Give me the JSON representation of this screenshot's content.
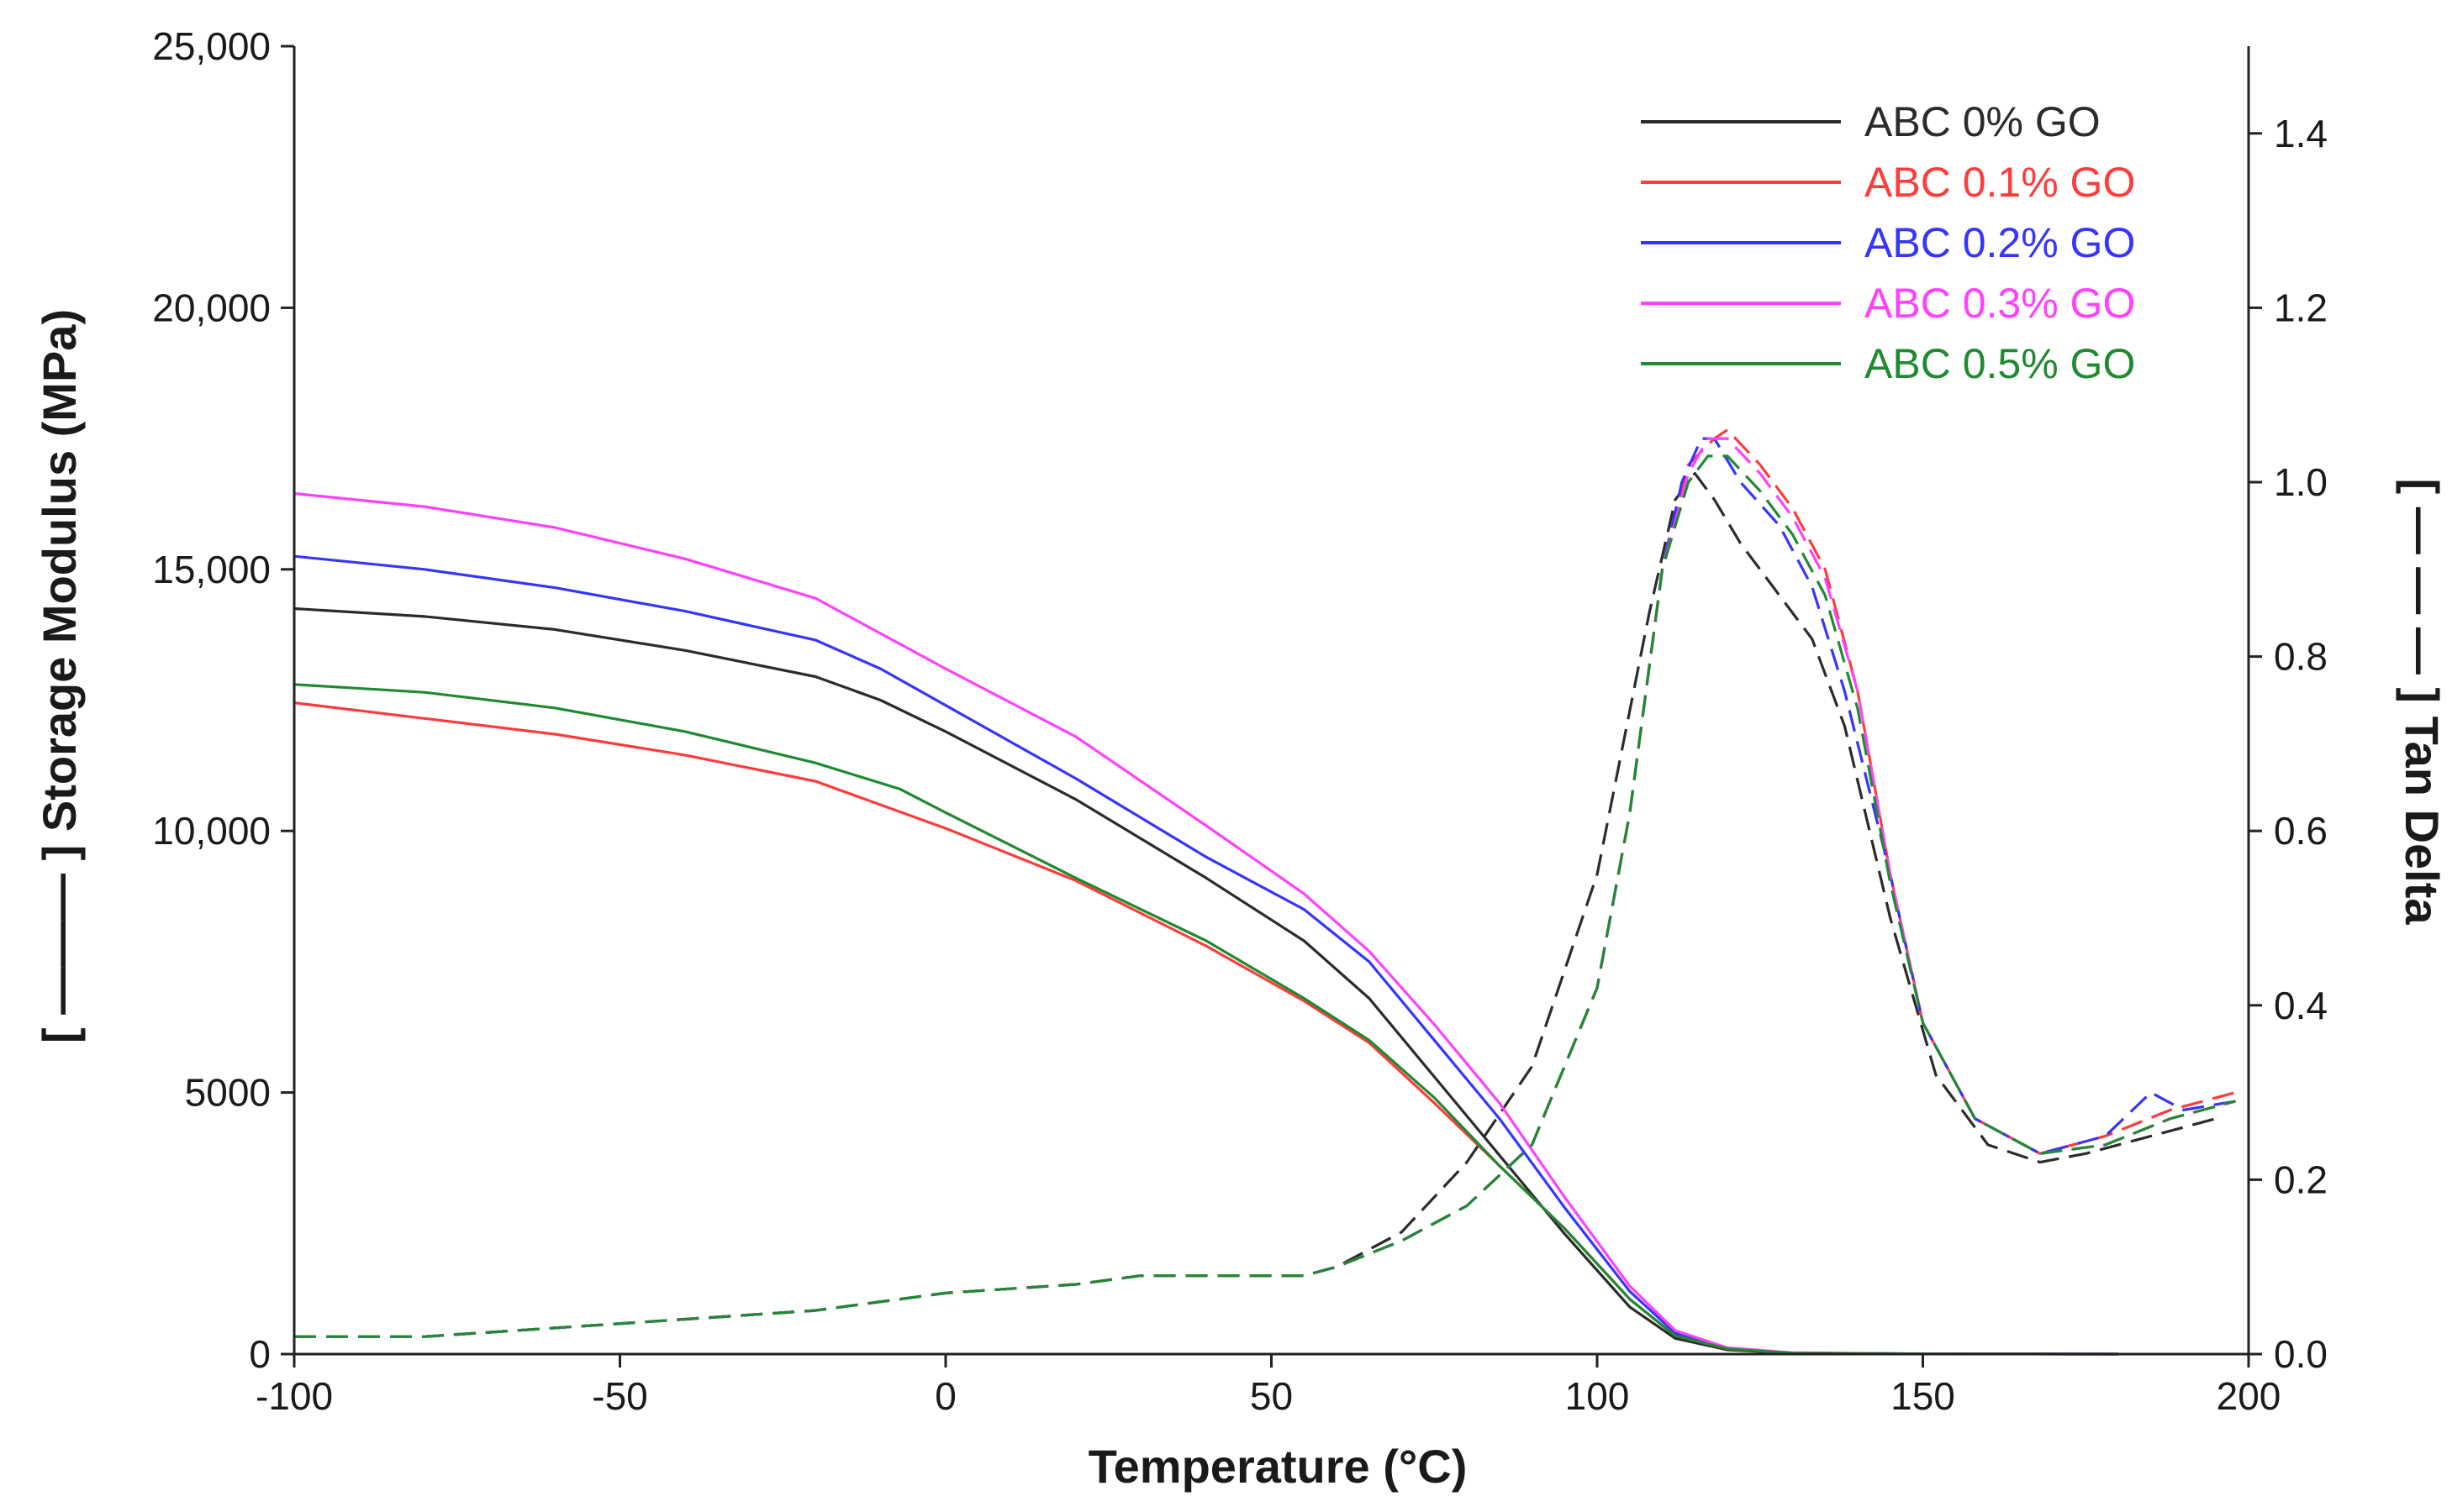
{
  "chart_data": {
    "type": "line",
    "xlabel": "Temperature (°C)",
    "ylabel": "[ ——— ] Storage Modulus (MPa)",
    "y2label": "[ — — — ] Tan Delta",
    "xlim": [
      -100,
      200
    ],
    "ylim": [
      0,
      25000
    ],
    "y2lim": [
      0,
      1.5
    ],
    "xticks": [
      -100,
      -50,
      0,
      50,
      100,
      150,
      200
    ],
    "xtick_labels": [
      "-100",
      "-50",
      "0",
      "50",
      "100",
      "150",
      "200"
    ],
    "yticks": [
      0,
      5000,
      10000,
      15000,
      20000,
      25000
    ],
    "ytick_labels": [
      "0",
      "5000",
      "10,000",
      "15,000",
      "20,000",
      "25,000"
    ],
    "y2ticks": [
      0.0,
      0.2,
      0.4,
      0.6,
      0.8,
      1.0,
      1.2,
      1.4
    ],
    "y2tick_labels": [
      "0.0",
      "0.2",
      "0.4",
      "0.6",
      "0.8",
      "1.0",
      "1.2",
      "1.4"
    ],
    "legend_position": "top-right",
    "series": [
      {
        "name": "ABC 0% GO",
        "color": "#2b2b2b",
        "storage_modulus": {
          "x": [
            -100,
            -80,
            -60,
            -40,
            -20,
            -10,
            0,
            20,
            40,
            55,
            65,
            75,
            85,
            95,
            105,
            112,
            120,
            130,
            150,
            180
          ],
          "y": [
            14250,
            14100,
            13850,
            13450,
            12950,
            12500,
            11900,
            10600,
            9100,
            7900,
            6800,
            5300,
            3800,
            2300,
            900,
            300,
            80,
            20,
            5,
            0
          ]
        },
        "tan_delta": {
          "x": [
            -100,
            -80,
            -60,
            -40,
            -20,
            0,
            20,
            30,
            40,
            55,
            60,
            70,
            80,
            90,
            100,
            108,
            112,
            115,
            118,
            122,
            128,
            133,
            138,
            145,
            152,
            160,
            168,
            175,
            185,
            195
          ],
          "y": [
            0.02,
            0.02,
            0.03,
            0.04,
            0.05,
            0.07,
            0.08,
            0.09,
            0.09,
            0.09,
            0.1,
            0.14,
            0.22,
            0.33,
            0.55,
            0.85,
            0.98,
            1.01,
            0.98,
            0.93,
            0.87,
            0.82,
            0.72,
            0.5,
            0.32,
            0.24,
            0.22,
            0.23,
            0.25,
            0.27
          ]
        }
      },
      {
        "name": "ABC 0.1% GO",
        "color": "#ff3b3b",
        "storage_modulus": {
          "x": [
            -100,
            -80,
            -60,
            -40,
            -20,
            0,
            20,
            40,
            55,
            65,
            75,
            85,
            95,
            105,
            112,
            120,
            130,
            150,
            180
          ],
          "y": [
            12450,
            12150,
            11850,
            11450,
            10950,
            10050,
            9050,
            7800,
            6750,
            5950,
            4800,
            3600,
            2400,
            1050,
            350,
            100,
            20,
            5,
            0
          ]
        },
        "tan_delta": {
          "x": [
            -100,
            -80,
            -60,
            -40,
            -20,
            0,
            20,
            30,
            40,
            55,
            60,
            70,
            80,
            90,
            100,
            105,
            110,
            114,
            118,
            120,
            125,
            130,
            135,
            140,
            145,
            150,
            158,
            168,
            178,
            188,
            198
          ],
          "y": [
            0.02,
            0.02,
            0.03,
            0.04,
            0.05,
            0.07,
            0.08,
            0.09,
            0.09,
            0.09,
            0.1,
            0.13,
            0.17,
            0.24,
            0.42,
            0.62,
            0.9,
            1.02,
            1.05,
            1.06,
            1.02,
            0.97,
            0.9,
            0.76,
            0.55,
            0.38,
            0.27,
            0.23,
            0.25,
            0.28,
            0.3
          ]
        }
      },
      {
        "name": "ABC 0.2% GO",
        "color": "#3535ff",
        "storage_modulus": {
          "x": [
            -100,
            -80,
            -60,
            -40,
            -20,
            -10,
            0,
            20,
            40,
            55,
            65,
            75,
            85,
            95,
            105,
            112,
            120,
            130,
            150,
            180
          ],
          "y": [
            15250,
            15000,
            14650,
            14200,
            13650,
            13100,
            12400,
            11000,
            9500,
            8500,
            7500,
            6000,
            4500,
            2800,
            1200,
            400,
            100,
            20,
            5,
            0
          ]
        },
        "tan_delta": {
          "x": [
            -100,
            -80,
            -60,
            -40,
            -20,
            0,
            20,
            30,
            40,
            55,
            60,
            70,
            80,
            90,
            100,
            105,
            110,
            113,
            116,
            118,
            122,
            128,
            133,
            138,
            145,
            150,
            158,
            168,
            178,
            185,
            190,
            198
          ],
          "y": [
            0.02,
            0.02,
            0.03,
            0.04,
            0.05,
            0.07,
            0.08,
            0.09,
            0.09,
            0.09,
            0.1,
            0.13,
            0.17,
            0.24,
            0.42,
            0.62,
            0.9,
            1.0,
            1.05,
            1.05,
            1.0,
            0.95,
            0.88,
            0.76,
            0.55,
            0.38,
            0.27,
            0.23,
            0.25,
            0.3,
            0.28,
            0.29
          ]
        }
      },
      {
        "name": "ABC 0.3% GO",
        "color": "#ff40ff",
        "storage_modulus": {
          "x": [
            -100,
            -80,
            -60,
            -40,
            -20,
            0,
            20,
            40,
            55,
            65,
            75,
            85,
            95,
            105,
            112,
            120,
            130,
            150,
            180
          ],
          "y": [
            16450,
            16200,
            15800,
            15200,
            14450,
            13100,
            11800,
            10100,
            8800,
            7700,
            6300,
            4800,
            3000,
            1300,
            450,
            120,
            25,
            5,
            0
          ]
        },
        "tan_delta": {
          "x": [
            -100,
            -80,
            -60,
            -40,
            -20,
            0,
            20,
            30,
            40,
            55,
            60,
            70,
            80,
            90,
            100,
            105,
            110,
            114,
            117,
            120,
            125,
            130,
            135,
            140,
            145,
            150,
            158,
            168,
            178,
            188,
            198
          ],
          "y": [
            0.02,
            0.02,
            0.03,
            0.04,
            0.05,
            0.07,
            0.08,
            0.09,
            0.09,
            0.09,
            0.1,
            0.13,
            0.17,
            0.24,
            0.42,
            0.62,
            0.9,
            1.01,
            1.05,
            1.05,
            1.01,
            0.96,
            0.89,
            0.76,
            0.55,
            0.38,
            0.27,
            0.23,
            0.24,
            0.27,
            0.29
          ]
        }
      },
      {
        "name": "ABC 0.5% GO",
        "color": "#1f8a2f",
        "storage_modulus": {
          "x": [
            -100,
            -80,
            -60,
            -40,
            -20,
            -7,
            0,
            20,
            40,
            55,
            65,
            75,
            85,
            95,
            105,
            112,
            120,
            130,
            150,
            180
          ],
          "y": [
            12800,
            12650,
            12350,
            11900,
            11300,
            10800,
            10350,
            9100,
            7900,
            6800,
            6000,
            4900,
            3600,
            2400,
            1050,
            350,
            100,
            20,
            5,
            0
          ]
        },
        "tan_delta": {
          "x": [
            -100,
            -80,
            -60,
            -40,
            -20,
            0,
            20,
            30,
            40,
            55,
            60,
            70,
            80,
            90,
            100,
            105,
            110,
            114,
            117,
            120,
            125,
            130,
            135,
            140,
            145,
            150,
            158,
            168,
            178,
            188,
            198
          ],
          "y": [
            0.02,
            0.02,
            0.03,
            0.04,
            0.05,
            0.07,
            0.08,
            0.09,
            0.09,
            0.09,
            0.1,
            0.13,
            0.17,
            0.24,
            0.42,
            0.62,
            0.9,
            1.0,
            1.03,
            1.03,
            0.99,
            0.94,
            0.87,
            0.74,
            0.54,
            0.38,
            0.27,
            0.23,
            0.24,
            0.27,
            0.29
          ]
        }
      }
    ]
  }
}
